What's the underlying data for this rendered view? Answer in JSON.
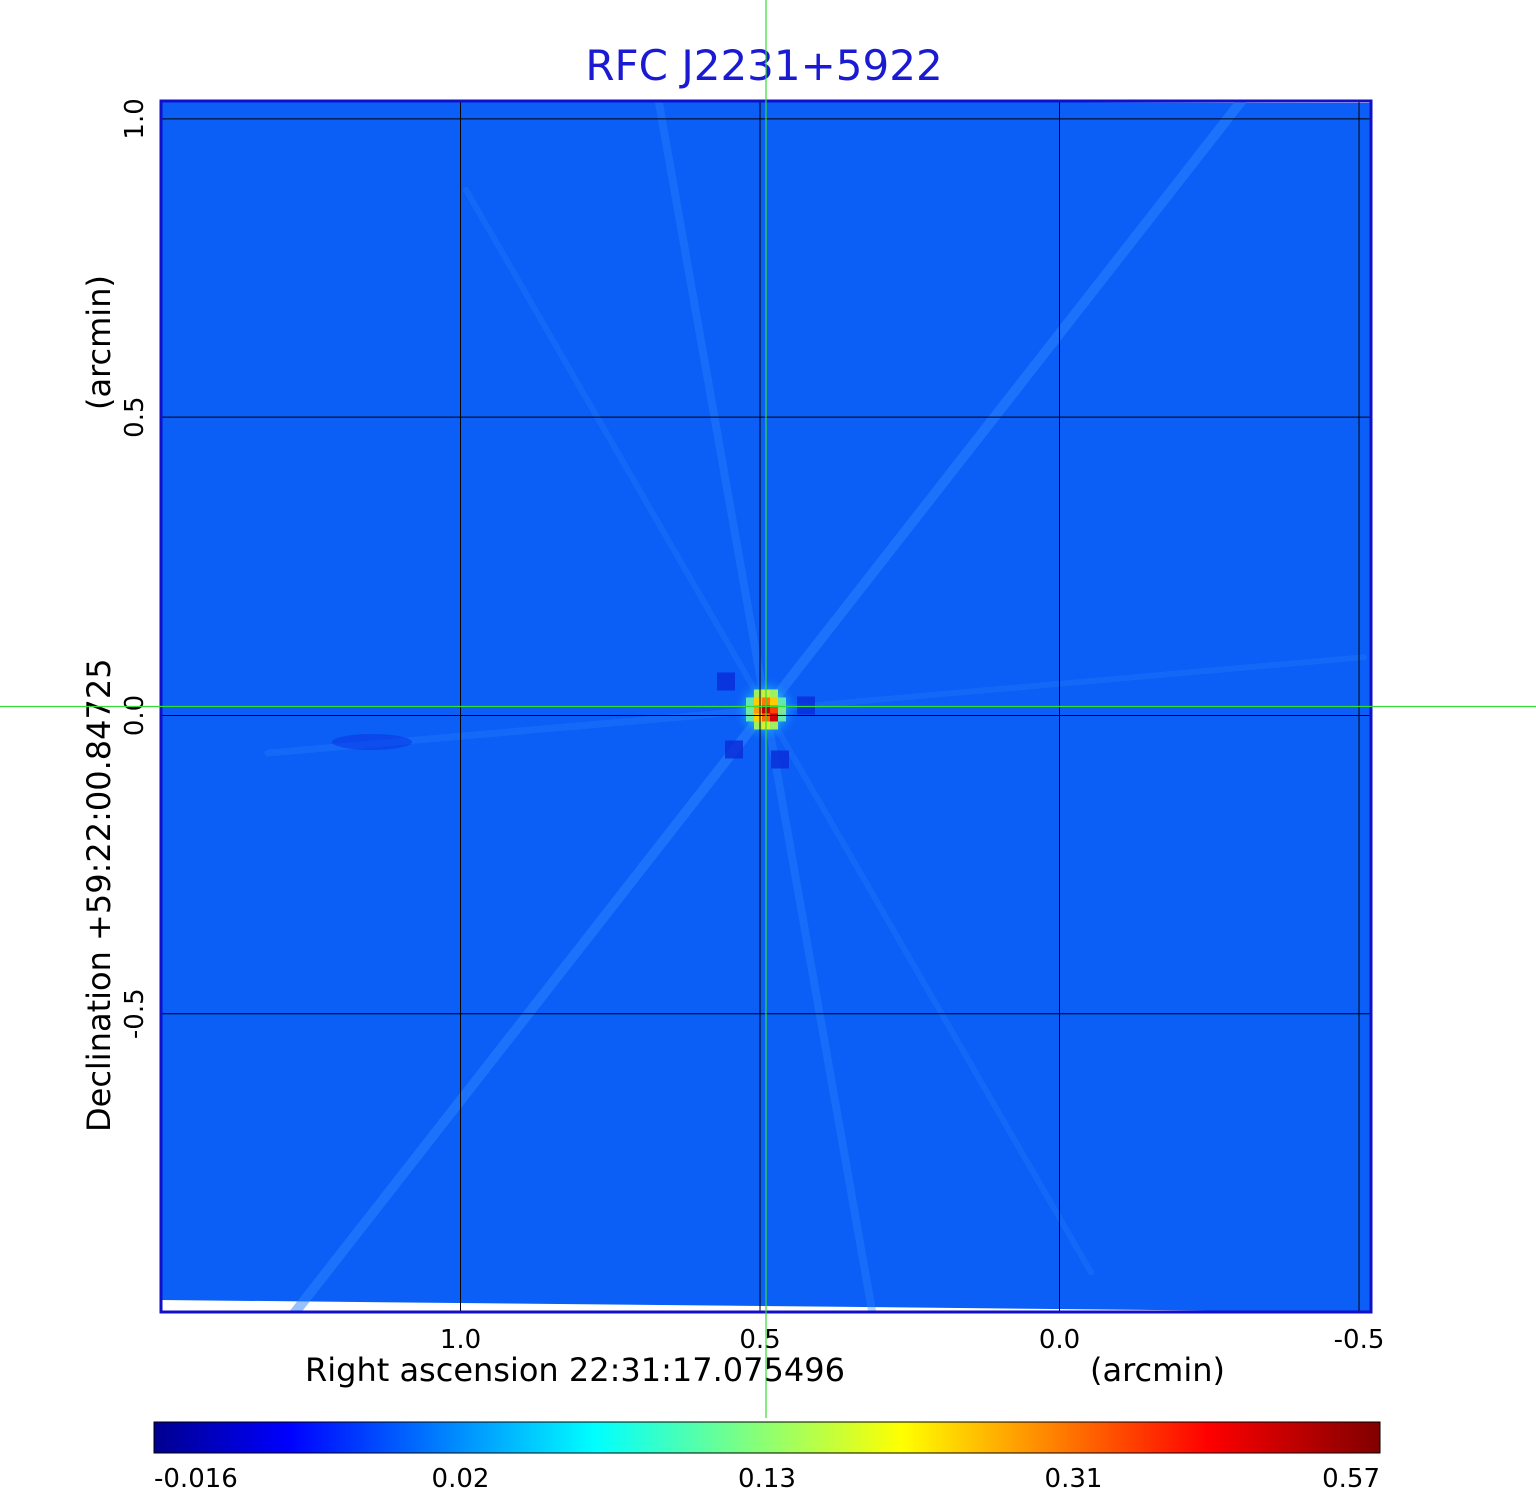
{
  "chart_data": {
    "type": "heatmap",
    "title": "RFC J2231+5922",
    "xlabel": "Right ascension  22:31:17.075496",
    "xunit": "(arcmin)",
    "ylabel": "Declination  +59:22:00.84725",
    "yunit": "(arcmin)",
    "x_ticks": [
      1.0,
      0.5,
      0.0,
      -0.5
    ],
    "x_tick_labels": [
      "1.0",
      "0.5",
      "0.0",
      "-0.5"
    ],
    "y_ticks": [
      1.0,
      0.5,
      0.0,
      -0.5
    ],
    "y_tick_labels": [
      "1.0",
      "0.5",
      "0.0",
      "-0.5"
    ],
    "xlim": [
      1.5,
      -0.52
    ],
    "ylim": [
      -1.0,
      1.03
    ],
    "grid": true,
    "crosshair": {
      "x": 0.49,
      "y": 0.015,
      "color": "#33dd33"
    },
    "colormap": "jet",
    "colorbar": {
      "ticks": [
        "-0.016",
        "0.02",
        "0.13",
        "0.31",
        "0.57"
      ],
      "min": -0.016,
      "max": 0.57
    },
    "background_value": -0.003,
    "source": {
      "x": 0.49,
      "y": 0.01,
      "peak": 0.57
    },
    "colors": {
      "title": "#1a1ad2",
      "frame": "#1010c8",
      "grid": "#000000",
      "field": "#0b5ef6"
    }
  }
}
